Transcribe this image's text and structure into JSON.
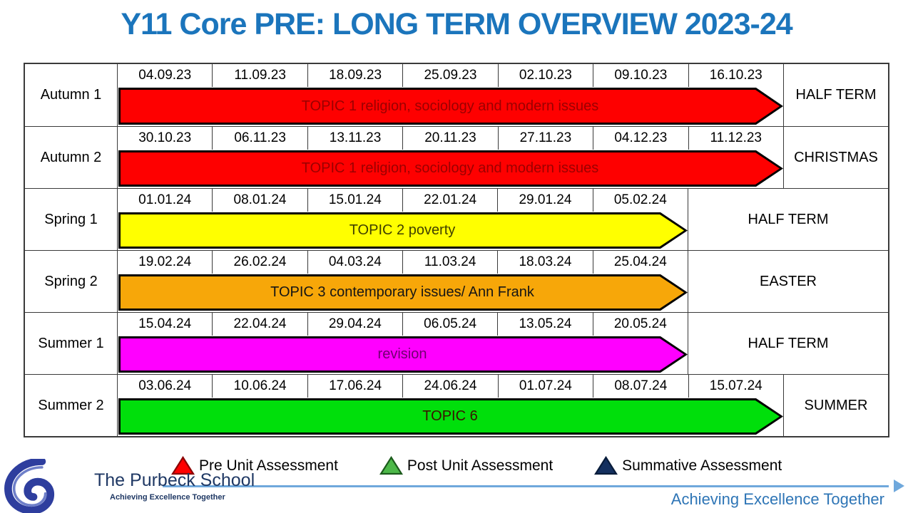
{
  "title": "Y11 Core PRE: LONG TERM OVERVIEW 2023-24",
  "rows": [
    {
      "term": "Autumn 1",
      "dates": [
        "04.09.23",
        "11.09.23",
        "18.09.23",
        "25.09.23",
        "02.10.23",
        "09.10.23",
        "16.10.23"
      ],
      "topic": "TOPIC 1 religion, sociology and modern issues",
      "holiday": "HALF TERM",
      "arrow_fill": "#FE0000",
      "topic_color": "#9B0000"
    },
    {
      "term": "Autumn 2",
      "dates": [
        "30.10.23",
        "06.11.23",
        "13.11.23",
        "20.11.23",
        "27.11.23",
        "04.12.23",
        "11.12.23"
      ],
      "topic": "TOPIC 1 religion, sociology and modern issues",
      "holiday": "CHRISTMAS",
      "arrow_fill": "#FE0000",
      "topic_color": "#9B0000"
    },
    {
      "term": "Spring 1",
      "dates": [
        "01.01.24",
        "08.01.24",
        "15.01.24",
        "22.01.24",
        "29.01.24",
        "05.02.24"
      ],
      "topic": "TOPIC 2 poverty",
      "holiday": "HALF TERM",
      "arrow_fill": "#FFFF00",
      "topic_color": "#3F3F00"
    },
    {
      "term": "Spring 2",
      "dates": [
        "19.02.24",
        "26.02.24",
        "04.03.24",
        "11.03.24",
        "18.03.24",
        "25.04.24"
      ],
      "topic": "TOPIC 3 contemporary issues/ Ann Frank",
      "holiday": "EASTER",
      "arrow_fill": "#F7A709",
      "topic_color": "#151515"
    },
    {
      "term": "Summer 1",
      "dates": [
        "15.04.24",
        "22.04.24",
        "29.04.24",
        "06.05.24",
        "13.05.24",
        "20.05.24"
      ],
      "topic": "revision",
      "holiday": "HALF TERM",
      "arrow_fill": "#FF00FF",
      "topic_color": "#700070"
    },
    {
      "term": "Summer 2",
      "dates": [
        "03.06.24",
        "10.06.24",
        "17.06.24",
        "24.06.24",
        "01.07.24",
        "08.07.24",
        "15.07.24"
      ],
      "topic": "TOPIC 6",
      "holiday": "SUMMER",
      "arrow_fill": "#00DF0B",
      "topic_color": "#3A1200"
    }
  ],
  "legend": [
    {
      "label": "Pre Unit Assessment",
      "fill": "#FF0000",
      "stroke": "#8B0000"
    },
    {
      "label": "Post Unit Assessment",
      "fill": "#4DB849",
      "stroke": "#1C5B1C"
    },
    {
      "label": "Summative Assessment",
      "fill": "#14305F",
      "stroke": "#081C3A"
    }
  ],
  "footer": {
    "school_name": "The Purbeck School",
    "school_tagline": "Achieving Excellence Together",
    "motto": "Achieving Excellence Together"
  },
  "colors": {
    "title_blue": "#1B75BC",
    "motto_blue": "#2E75B6",
    "line_blue": "#6FA8DC",
    "school_navy": "#1F3864"
  }
}
